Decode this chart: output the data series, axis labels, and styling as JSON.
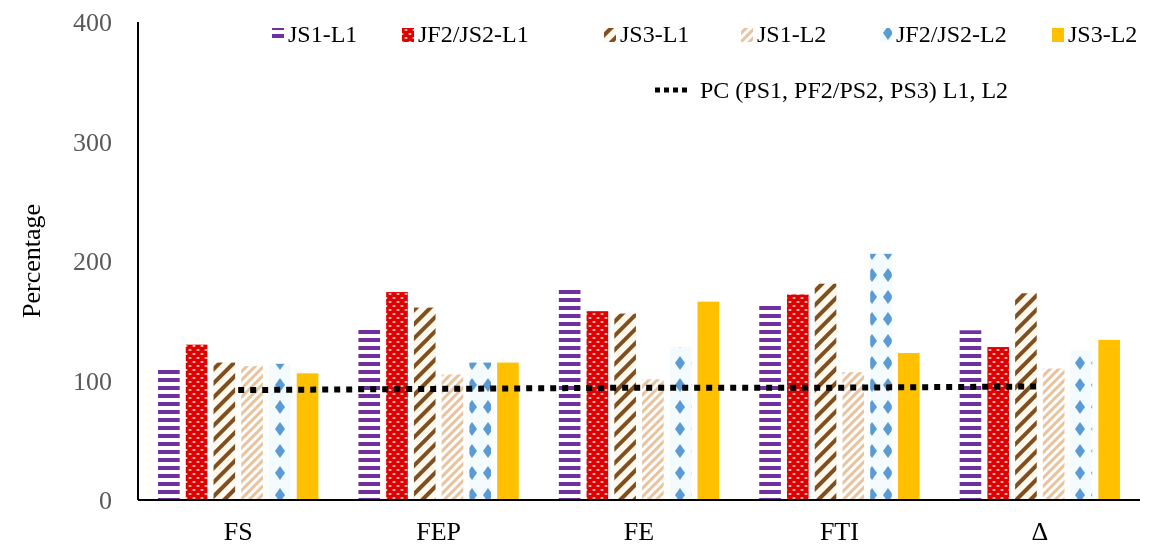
{
  "chart_data": {
    "type": "bar",
    "ylabel": "Percentage",
    "categories": [
      "FS",
      "FEP",
      "FE",
      "FTI",
      "Δ"
    ],
    "ylim": [
      0,
      400
    ],
    "yticks": [
      0,
      100,
      200,
      300,
      400
    ],
    "grid": false,
    "legend": "top",
    "series": [
      {
        "name": "JS1-L1",
        "color": "#7030a0",
        "values": [
          110,
          145,
          177,
          164,
          142
        ]
      },
      {
        "name": "JF2/JS2-L1",
        "color": "#e00000",
        "values": [
          130,
          174,
          158,
          172,
          128
        ]
      },
      {
        "name": "JS3-L1",
        "color": "#7f4f1f",
        "values": [
          115,
          161,
          156,
          181,
          173
        ]
      },
      {
        "name": "JS1-L2",
        "color": "#e8c39e",
        "values": [
          112,
          105,
          101,
          107,
          110
        ]
      },
      {
        "name": "JF2/JS2-L2",
        "color": "#5b9bd5",
        "values": [
          114,
          115,
          128,
          206,
          125
        ]
      },
      {
        "name": "JS3-L2",
        "color": "#ffc000",
        "values": [
          106,
          115,
          166,
          123,
          134
        ]
      },
      {
        "name": "PC (PS1, PF2/PS2, PS3) L1, L2",
        "type": "line",
        "color": "#000000",
        "line_style": "dotted",
        "values": [
          92,
          93,
          94,
          94,
          95
        ]
      }
    ]
  }
}
